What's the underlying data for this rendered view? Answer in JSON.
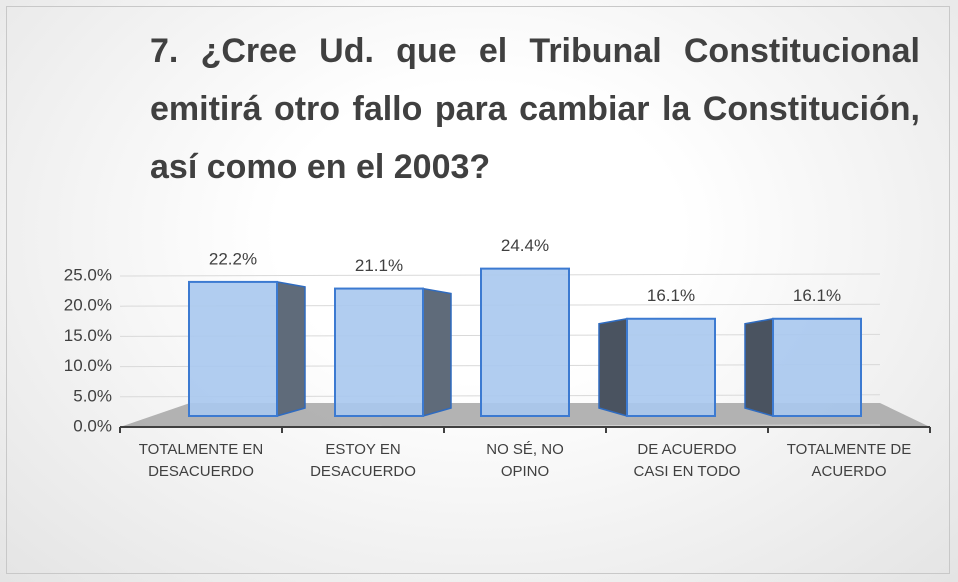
{
  "chart_data": {
    "type": "bar3d",
    "title": "7. ¿Cree Ud. que el Tribunal Constitucional emitirá otro fallo para cambiar la Constitución, así como en el 2003?",
    "categories": [
      "TOTALMENTE EN DESACUERDO",
      "ESTOY EN DESACUERDO",
      "NO SÉ, NO OPINO",
      "DE ACUERDO CASI EN TODO",
      "TOTALMENTE DE ACUERDO"
    ],
    "values": [
      22.2,
      21.1,
      24.4,
      16.1,
      16.1
    ],
    "value_labels": [
      "22.2%",
      "21.1%",
      "24.4%",
      "16.1%",
      "16.1%"
    ],
    "color": "#a9c8ee",
    "ylim": [
      0,
      25
    ],
    "yticks": [
      {
        "value": 0,
        "label": "0.0%"
      },
      {
        "value": 5,
        "label": "5.0%"
      },
      {
        "value": 10,
        "label": "10.0%"
      },
      {
        "value": 15,
        "label": "15.0%"
      },
      {
        "value": 20,
        "label": "20.0%"
      },
      {
        "value": 25,
        "label": "25.0%"
      }
    ],
    "grid": true
  }
}
